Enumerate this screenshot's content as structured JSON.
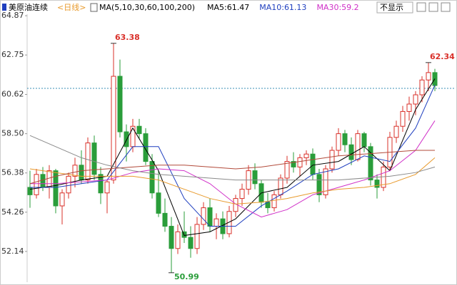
{
  "chart_data": {
    "type": "candlestick",
    "header": {
      "title": "美原油连续",
      "period": "<日线>",
      "ma_params": "MA(5,10,30,60,100,200)",
      "ma_labels": [
        "MA5:61.47",
        "MA10:61.13",
        "MA30:59.2"
      ],
      "dropdown": "不显示"
    },
    "ma_label_colors": [
      "#000000",
      "#1f3fbf",
      "#d030c8"
    ],
    "ylim": [
      50.52,
      64.95
    ],
    "yticks": [
      64.87,
      {
        "value": 62.75,
        "label": "62.75"
      },
      {
        "value": 60.62,
        "label": "60.62"
      },
      {
        "value": 58.5,
        "label": "58.50"
      },
      {
        "value": 56.38,
        "label": "56.38"
      },
      {
        "value": 54.26,
        "label": "54.26"
      },
      {
        "value": 52.14,
        "label": "52.14"
      }
    ],
    "reference_line": 60.95,
    "up_color": "#d9302a",
    "down_color": "#2a9d3a",
    "candles": [
      [
        55.6,
        56.5,
        54.5,
        55.2
      ],
      [
        55.2,
        56.6,
        55.0,
        56.3
      ],
      [
        56.3,
        56.7,
        55.4,
        55.6
      ],
      [
        55.6,
        56.8,
        55.0,
        56.5
      ],
      [
        56.5,
        56.6,
        54.2,
        54.6
      ],
      [
        54.6,
        55.5,
        53.6,
        55.3
      ],
      [
        55.3,
        56.4,
        55.0,
        56.2
      ],
      [
        56.2,
        57.2,
        55.6,
        56.8
      ],
      [
        56.8,
        57.6,
        55.8,
        56.0
      ],
      [
        56.0,
        58.3,
        55.8,
        58.0
      ],
      [
        58.0,
        58.4,
        56.0,
        56.3
      ],
      [
        56.3,
        56.7,
        54.7,
        55.3
      ],
      [
        55.3,
        56.0,
        54.2,
        55.9
      ],
      [
        56.0,
        63.38,
        55.8,
        61.6
      ],
      [
        61.6,
        62.5,
        58.3,
        58.6
      ],
      [
        58.6,
        59.0,
        57.0,
        57.8
      ],
      [
        57.8,
        59.3,
        57.5,
        58.9
      ],
      [
        58.9,
        59.3,
        58.2,
        58.5
      ],
      [
        58.5,
        58.8,
        56.8,
        57.0
      ],
      [
        57.0,
        57.4,
        55.0,
        55.3
      ],
      [
        55.3,
        56.5,
        54.0,
        54.2
      ],
      [
        54.2,
        55.0,
        53.2,
        53.5
      ],
      [
        53.5,
        54.0,
        50.99,
        52.3
      ],
      [
        52.3,
        53.6,
        52.0,
        53.2
      ],
      [
        53.2,
        54.3,
        52.6,
        52.9
      ],
      [
        52.9,
        53.5,
        51.8,
        52.3
      ],
      [
        52.3,
        54.0,
        52.0,
        53.6
      ],
      [
        53.6,
        54.8,
        53.3,
        54.5
      ],
      [
        54.5,
        55.0,
        53.2,
        53.5
      ],
      [
        53.5,
        54.2,
        52.8,
        53.9
      ],
      [
        53.9,
        54.3,
        52.8,
        53.1
      ],
      [
        53.1,
        54.6,
        52.9,
        54.3
      ],
      [
        54.3,
        55.2,
        54.0,
        55.0
      ],
      [
        55.0,
        55.8,
        54.6,
        55.5
      ],
      [
        55.5,
        56.8,
        55.2,
        56.5
      ],
      [
        56.5,
        56.9,
        55.5,
        55.8
      ],
      [
        55.8,
        56.0,
        54.5,
        54.8
      ],
      [
        54.8,
        55.3,
        54.2,
        54.5
      ],
      [
        54.5,
        55.4,
        54.3,
        55.2
      ],
      [
        55.2,
        56.3,
        55.0,
        56.1
      ],
      [
        56.1,
        57.3,
        55.8,
        57.0
      ],
      [
        57.0,
        57.5,
        56.4,
        56.7
      ],
      [
        56.7,
        57.4,
        56.2,
        57.2
      ],
      [
        57.2,
        57.6,
        56.8,
        57.4
      ],
      [
        57.4,
        57.7,
        56.0,
        56.3
      ],
      [
        56.3,
        56.6,
        54.8,
        55.2
      ],
      [
        55.2,
        56.8,
        55.0,
        56.6
      ],
      [
        56.6,
        57.8,
        56.4,
        57.6
      ],
      [
        57.6,
        58.8,
        57.3,
        58.5
      ],
      [
        58.5,
        58.7,
        57.5,
        57.9
      ],
      [
        57.9,
        58.3,
        56.8,
        57.1
      ],
      [
        57.1,
        58.7,
        57.0,
        58.5
      ],
      [
        58.5,
        58.6,
        57.5,
        57.8
      ],
      [
        57.8,
        58.0,
        55.7,
        56.0
      ],
      [
        56.0,
        56.3,
        55.0,
        55.6
      ],
      [
        55.6,
        57.0,
        55.4,
        56.7
      ],
      [
        56.7,
        58.6,
        56.5,
        58.3
      ],
      [
        58.3,
        59.2,
        58.0,
        58.9
      ],
      [
        58.9,
        60.0,
        58.6,
        59.7
      ],
      [
        59.7,
        60.5,
        59.2,
        60.1
      ],
      [
        60.1,
        60.8,
        59.5,
        60.6
      ],
      [
        60.6,
        61.6,
        60.2,
        61.4
      ],
      [
        61.4,
        62.34,
        60.8,
        61.8
      ],
      [
        61.8,
        62.0,
        60.8,
        61.1
      ]
    ],
    "high_labels": [
      13,
      62
    ],
    "low_labels": [
      22
    ],
    "ma_x": [
      0,
      4,
      8,
      12,
      16,
      20,
      24,
      28,
      32,
      36,
      40,
      44,
      48,
      52,
      56,
      60,
      63
    ],
    "series": [
      {
        "color": "#000000",
        "values": [
          55.5,
          55.7,
          56.0,
          56.2,
          58.8,
          56.5,
          53.0,
          53.2,
          53.9,
          55.3,
          55.6,
          56.8,
          57.0,
          57.8,
          56.5,
          59.8,
          61.47
        ]
      },
      {
        "color": "#1f3fbf",
        "values": [
          55.6,
          55.6,
          55.8,
          56.0,
          57.8,
          57.8,
          55.0,
          53.5,
          53.5,
          54.6,
          55.4,
          56.3,
          56.6,
          57.3,
          57.0,
          58.8,
          61.13
        ]
      },
      {
        "color": "#d030c8",
        "values": [
          55.8,
          55.8,
          55.9,
          56.0,
          56.4,
          56.6,
          56.5,
          55.8,
          54.7,
          54.0,
          54.4,
          55.2,
          55.6,
          56.0,
          56.5,
          57.6,
          59.2
        ]
      },
      {
        "color": "#e89a2c",
        "values": [
          56.6,
          56.4,
          56.2,
          56.2,
          56.2,
          56.0,
          55.5,
          55.0,
          54.7,
          54.8,
          55.0,
          55.3,
          55.5,
          55.6,
          55.8,
          56.3,
          57.2
        ]
      },
      {
        "color": "#b24a3a",
        "values": [
          55.8,
          56.2,
          56.5,
          56.6,
          56.7,
          56.8,
          56.8,
          56.7,
          56.6,
          56.7,
          56.9,
          57.1,
          57.3,
          57.4,
          57.5,
          57.6,
          57.6
        ]
      },
      {
        "color": "#8a8a8a",
        "values": [
          58.4,
          57.8,
          57.2,
          56.8,
          56.5,
          56.3,
          56.2,
          56.1,
          56.0,
          56.0,
          56.0,
          56.0,
          56.0,
          56.1,
          56.2,
          56.4,
          56.7
        ]
      }
    ]
  }
}
